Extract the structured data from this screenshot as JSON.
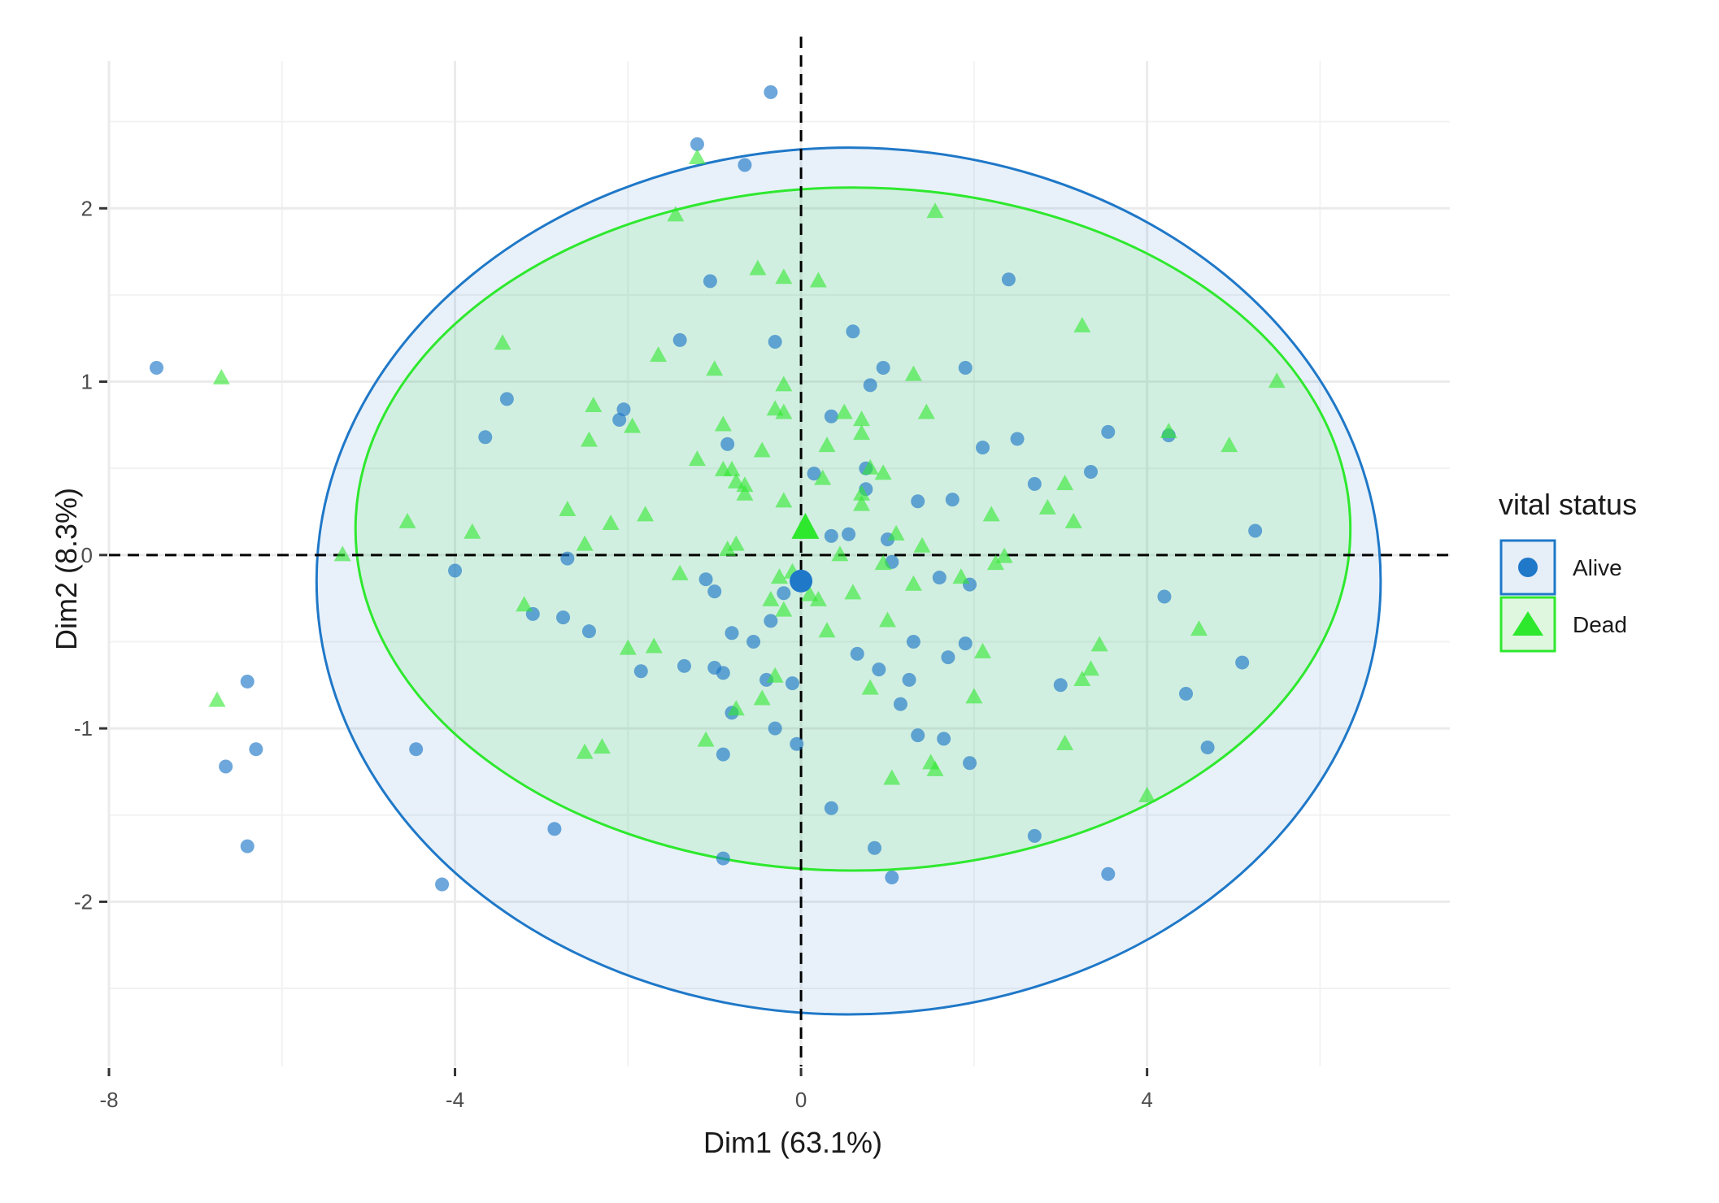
{
  "chart_data": {
    "type": "scatter",
    "title": "",
    "xlabel": "Dim1 (63.1%)",
    "ylabel": "Dim2 (8.3%)",
    "xlim": [
      -8,
      7.5
    ],
    "ylim": [
      -2.95,
      2.85
    ],
    "x_ticks": [
      -8,
      -4,
      0,
      4
    ],
    "x_tick_labels": [
      "-8",
      "-4",
      "0",
      "4"
    ],
    "y_ticks": [
      -2,
      -1,
      0,
      1,
      2
    ],
    "y_tick_labels": [
      "-2",
      "-1",
      "0",
      "1",
      "2"
    ],
    "grid": true,
    "reference_lines": {
      "x": 0,
      "y": 0,
      "style": "dashed"
    },
    "legend": {
      "title": "vital status",
      "position": "right",
      "entries": [
        "Alive",
        "Dead"
      ]
    },
    "series": [
      {
        "name": "Alive",
        "marker": "circle",
        "color": "#1f78c8",
        "centroid": [
          0,
          -0.15
        ],
        "ellipse": {
          "center": [
            0.55,
            -0.15
          ],
          "rx": 6.15,
          "ry": 2.5
        },
        "points": [
          [
            -7.45,
            1.08
          ],
          [
            -6.4,
            -0.73
          ],
          [
            -6.3,
            -1.12
          ],
          [
            -6.65,
            -1.22
          ],
          [
            -6.4,
            -1.68
          ],
          [
            -4.45,
            -1.12
          ],
          [
            -4.15,
            -1.9
          ],
          [
            -2.85,
            -1.58
          ],
          [
            -4.0,
            -0.09
          ],
          [
            -3.65,
            0.68
          ],
          [
            -3.4,
            0.9
          ],
          [
            -3.1,
            -0.34
          ],
          [
            -2.75,
            -0.36
          ],
          [
            -2.7,
            -0.02
          ],
          [
            -2.45,
            -0.44
          ],
          [
            -2.05,
            0.84
          ],
          [
            -2.1,
            0.78
          ],
          [
            -1.85,
            -0.67
          ],
          [
            -1.4,
            1.24
          ],
          [
            -1.35,
            -0.64
          ],
          [
            -1.2,
            2.37
          ],
          [
            -1.05,
            1.58
          ],
          [
            -0.65,
            2.25
          ],
          [
            -0.35,
            2.67
          ],
          [
            -1.1,
            -0.14
          ],
          [
            -1.0,
            -0.21
          ],
          [
            -1.0,
            -0.65
          ],
          [
            -0.9,
            -0.68
          ],
          [
            -0.8,
            -0.45
          ],
          [
            -0.8,
            -0.91
          ],
          [
            -0.85,
            0.64
          ],
          [
            -0.55,
            -0.5
          ],
          [
            -0.4,
            -0.72
          ],
          [
            -0.35,
            -0.38
          ],
          [
            -0.3,
            1.23
          ],
          [
            -0.3,
            -1.0
          ],
          [
            -0.2,
            -0.22
          ],
          [
            -0.1,
            -0.74
          ],
          [
            -0.05,
            -1.09
          ],
          [
            -0.9,
            -1.15
          ],
          [
            -0.9,
            -1.75
          ],
          [
            0.15,
            0.47
          ],
          [
            0.35,
            0.11
          ],
          [
            0.55,
            0.12
          ],
          [
            0.35,
            0.8
          ],
          [
            0.6,
            1.29
          ],
          [
            0.75,
            0.5
          ],
          [
            0.75,
            0.38
          ],
          [
            0.8,
            0.98
          ],
          [
            0.95,
            1.08
          ],
          [
            1.0,
            0.09
          ],
          [
            1.05,
            -0.04
          ],
          [
            0.65,
            -0.57
          ],
          [
            0.9,
            -0.66
          ],
          [
            1.15,
            -0.86
          ],
          [
            1.25,
            -0.72
          ],
          [
            1.3,
            -0.5
          ],
          [
            1.35,
            0.31
          ],
          [
            1.35,
            -1.04
          ],
          [
            1.6,
            -0.13
          ],
          [
            1.65,
            -1.06
          ],
          [
            1.7,
            -0.59
          ],
          [
            1.75,
            0.32
          ],
          [
            1.9,
            -0.51
          ],
          [
            1.9,
            1.08
          ],
          [
            1.95,
            -0.17
          ],
          [
            1.95,
            -1.2
          ],
          [
            0.35,
            -1.46
          ],
          [
            0.85,
            -1.69
          ],
          [
            1.05,
            -1.86
          ],
          [
            2.1,
            0.62
          ],
          [
            2.4,
            1.59
          ],
          [
            2.5,
            0.67
          ],
          [
            2.7,
            0.41
          ],
          [
            2.7,
            -1.62
          ],
          [
            3.0,
            -0.75
          ],
          [
            3.35,
            0.48
          ],
          [
            3.55,
            0.71
          ],
          [
            3.55,
            -1.84
          ],
          [
            4.25,
            0.69
          ],
          [
            4.2,
            -0.24
          ],
          [
            4.45,
            -0.8
          ],
          [
            4.7,
            -1.11
          ],
          [
            5.1,
            -0.62
          ],
          [
            5.25,
            0.14
          ]
        ]
      },
      {
        "name": "Dead",
        "marker": "triangle",
        "color": "#2ee82e",
        "centroid": [
          0.05,
          0.15
        ],
        "ellipse": {
          "center": [
            0.6,
            0.15
          ],
          "rx": 5.75,
          "ry": 1.97
        },
        "points": [
          [
            -6.7,
            1.02
          ],
          [
            -6.75,
            -0.84
          ],
          [
            -5.3,
            0.0
          ],
          [
            -4.55,
            0.19
          ],
          [
            -3.8,
            0.13
          ],
          [
            -3.45,
            1.22
          ],
          [
            -3.2,
            -0.29
          ],
          [
            -2.7,
            0.26
          ],
          [
            -2.5,
            0.06
          ],
          [
            -2.45,
            0.66
          ],
          [
            -2.4,
            0.86
          ],
          [
            -2.5,
            -1.14
          ],
          [
            -2.3,
            -1.11
          ],
          [
            -2.2,
            0.18
          ],
          [
            -1.95,
            0.74
          ],
          [
            -2.0,
            -0.54
          ],
          [
            -1.8,
            0.23
          ],
          [
            -1.7,
            -0.53
          ],
          [
            -1.65,
            1.15
          ],
          [
            -1.45,
            1.96
          ],
          [
            -1.4,
            -0.11
          ],
          [
            -1.2,
            0.55
          ],
          [
            -1.2,
            2.29
          ],
          [
            -1.0,
            1.07
          ],
          [
            -0.9,
            0.75
          ],
          [
            -0.9,
            0.49
          ],
          [
            -0.8,
            0.49
          ],
          [
            -0.75,
            0.42
          ],
          [
            -0.85,
            0.03
          ],
          [
            -0.75,
            0.06
          ],
          [
            -0.65,
            0.35
          ],
          [
            -0.65,
            0.4
          ],
          [
            -0.75,
            -0.89
          ],
          [
            -0.5,
            1.65
          ],
          [
            -0.45,
            0.6
          ],
          [
            -0.3,
            0.84
          ],
          [
            -0.2,
            0.82
          ],
          [
            -0.2,
            0.98
          ],
          [
            -0.2,
            1.6
          ],
          [
            -0.35,
            -0.26
          ],
          [
            -0.25,
            -0.13
          ],
          [
            -0.1,
            -0.1
          ],
          [
            -0.2,
            -0.32
          ],
          [
            -0.3,
            -0.7
          ],
          [
            -0.45,
            -0.83
          ],
          [
            -1.1,
            -1.07
          ],
          [
            -0.2,
            0.31
          ],
          [
            0.2,
            1.58
          ],
          [
            0.1,
            -0.23
          ],
          [
            0.2,
            -0.26
          ],
          [
            0.25,
            0.44
          ],
          [
            0.3,
            0.63
          ],
          [
            0.3,
            -0.44
          ],
          [
            0.5,
            0.82
          ],
          [
            0.6,
            -0.22
          ],
          [
            0.7,
            0.78
          ],
          [
            0.7,
            0.7
          ],
          [
            0.7,
            0.29
          ],
          [
            0.7,
            0.35
          ],
          [
            0.8,
            0.5
          ],
          [
            0.8,
            -0.77
          ],
          [
            0.95,
            0.47
          ],
          [
            0.95,
            -0.05
          ],
          [
            1.0,
            -0.38
          ],
          [
            1.1,
            0.12
          ],
          [
            1.05,
            -1.29
          ],
          [
            1.3,
            1.04
          ],
          [
            1.3,
            -0.17
          ],
          [
            1.4,
            0.05
          ],
          [
            1.45,
            0.82
          ],
          [
            1.55,
            1.98
          ],
          [
            1.5,
            -1.2
          ],
          [
            1.55,
            -1.24
          ],
          [
            1.85,
            -0.13
          ],
          [
            2.0,
            -0.82
          ],
          [
            2.1,
            -0.56
          ],
          [
            2.2,
            0.23
          ],
          [
            2.25,
            -0.05
          ],
          [
            2.35,
            -0.01
          ],
          [
            2.85,
            0.27
          ],
          [
            3.05,
            0.41
          ],
          [
            3.15,
            0.19
          ],
          [
            3.05,
            -1.09
          ],
          [
            3.25,
            1.32
          ],
          [
            3.25,
            -0.72
          ],
          [
            3.35,
            -0.66
          ],
          [
            3.45,
            -0.52
          ],
          [
            4.0,
            -1.39
          ],
          [
            4.25,
            0.71
          ],
          [
            4.6,
            -0.43
          ],
          [
            4.95,
            0.63
          ],
          [
            5.5,
            1.0
          ],
          [
            0.45,
            0.0
          ]
        ]
      }
    ]
  }
}
